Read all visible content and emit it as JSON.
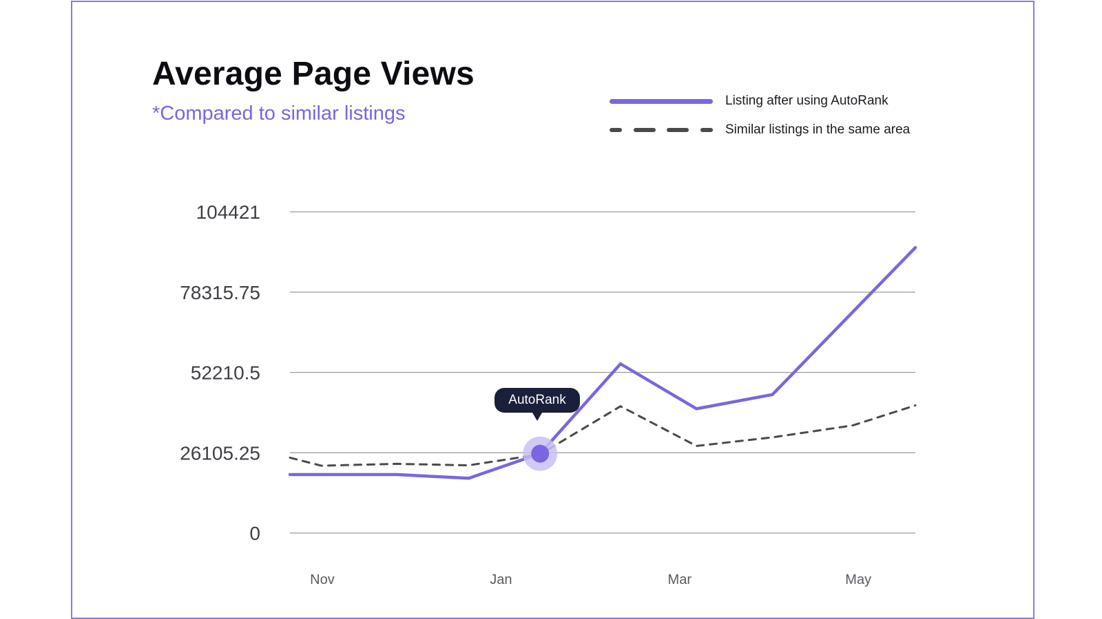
{
  "colors": {
    "frame": "#8b7ad6",
    "primary": "#7b65e0",
    "dashed": "#4a4a4a",
    "grid": "#9a9a9a",
    "tooltip_bg": "#18203a",
    "marker_halo": "#c9bff5"
  },
  "chart_data": {
    "type": "line",
    "title": "Average Page Views",
    "subtitle": "*Compared to similar listings",
    "xlabel": "",
    "ylabel": "",
    "x_tick_labels": [
      "Nov",
      "Jan",
      "Mar",
      "May"
    ],
    "x_tick_positions": [
      0.3,
      2.3,
      4.3,
      6.3
    ],
    "xlim": [
      0,
      7
    ],
    "ylim": [
      0,
      104421
    ],
    "y_ticks": [
      0,
      26105.25,
      52210.5,
      78315.75,
      104421
    ],
    "y_tick_labels": [
      "0",
      "26105.25",
      "52210.5",
      "78315.75",
      "104421"
    ],
    "grid": true,
    "legend_position": "top-right",
    "series": [
      {
        "name": "Listing after using AutoRank",
        "style": "solid",
        "x": [
          0,
          1.2,
          2.0,
          2.8,
          3.7,
          4.55,
          5.4,
          7.0
        ],
        "values": [
          19000,
          19000,
          17800,
          25800,
          55000,
          40400,
          45000,
          92800
        ]
      },
      {
        "name": "Similar listings in the same area",
        "style": "dashed",
        "x": [
          0,
          0.35,
          1.2,
          2.0,
          2.8,
          3.7,
          4.55,
          5.4,
          6.3,
          7.0
        ],
        "values": [
          24500,
          21900,
          22500,
          22000,
          25600,
          41200,
          28300,
          31100,
          35000,
          41500
        ]
      }
    ],
    "annotation": {
      "label": "AutoRank",
      "series": 0,
      "x": 2.8,
      "y": 25800
    }
  }
}
